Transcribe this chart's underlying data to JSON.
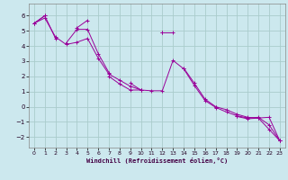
{
  "xlabel": "Windchill (Refroidissement éolien,°C)",
  "background_color": "#cce8ee",
  "grid_color": "#aacccc",
  "line_color": "#990099",
  "ylim": [
    -2.7,
    6.8
  ],
  "xlim": [
    -0.5,
    23.5
  ],
  "yticks": [
    -2,
    -1,
    0,
    1,
    2,
    3,
    4,
    5,
    6
  ],
  "xticks": [
    0,
    1,
    2,
    3,
    4,
    5,
    6,
    7,
    8,
    9,
    10,
    11,
    12,
    13,
    14,
    15,
    16,
    17,
    18,
    19,
    20,
    21,
    22,
    23
  ],
  "s1": [
    5.5,
    6.0,
    4.5,
    null,
    5.2,
    5.7,
    null,
    2.0,
    1.5,
    1.1,
    1.1,
    null,
    4.9,
    4.9,
    null,
    null,
    null,
    -0.1,
    null,
    -0.65,
    -0.8,
    -0.75,
    -0.7,
    -2.25
  ],
  "s2": [
    5.5,
    6.0,
    null,
    4.2,
    5.1,
    5.1,
    3.5,
    2.25,
    null,
    1.55,
    1.1,
    null,
    4.9,
    null,
    2.55,
    1.55,
    0.5,
    0.0,
    -0.2,
    -0.5,
    -0.7,
    -0.75,
    -1.5,
    -2.25
  ],
  "s3": [
    5.5,
    5.85,
    4.6,
    4.1,
    4.25,
    4.5,
    3.2,
    2.15,
    1.75,
    1.35,
    1.1,
    1.05,
    1.05,
    3.05,
    2.5,
    1.4,
    0.4,
    -0.05,
    -0.35,
    -0.6,
    -0.75,
    -0.7,
    -1.2,
    -2.25
  ]
}
